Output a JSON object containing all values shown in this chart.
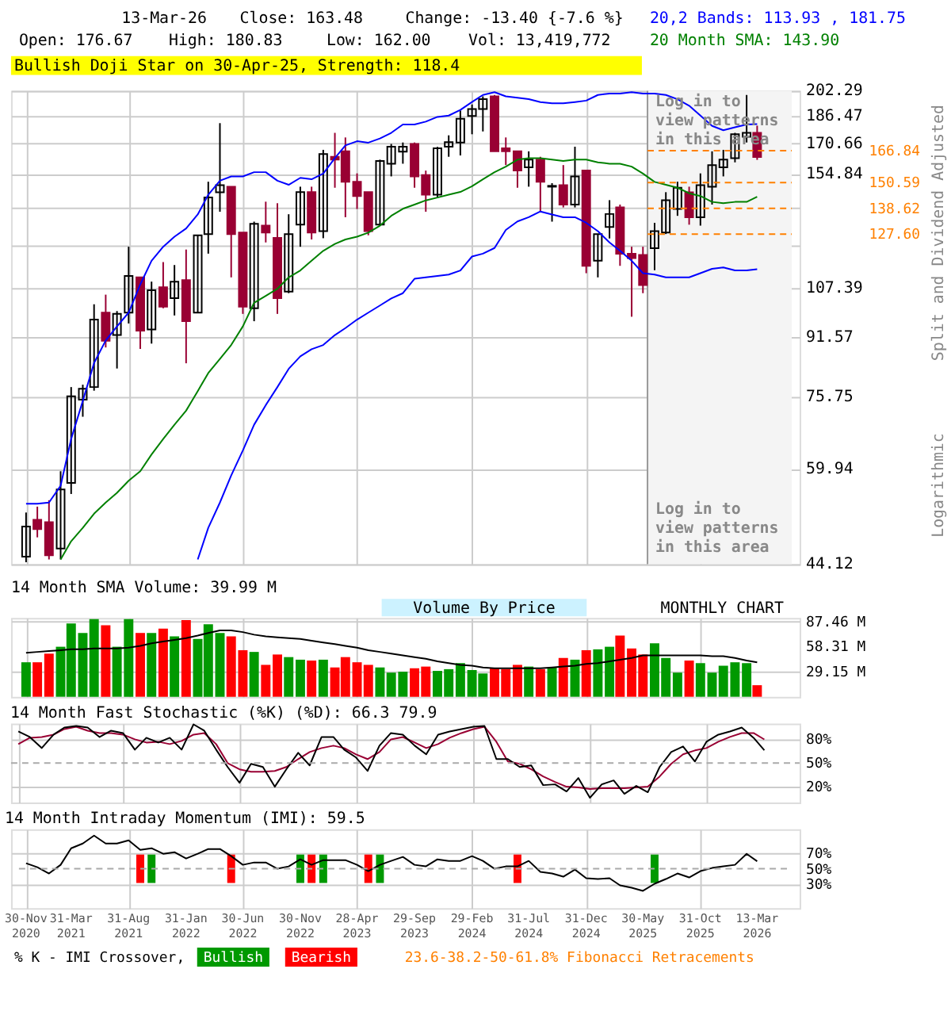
{
  "chart_data": [
    {
      "type": "candlestick",
      "categories": [
        null,
        null,
        null,
        null,
        null,
        null,
        null,
        null,
        null,
        null,
        null,
        null,
        null,
        null,
        null,
        null,
        null,
        null,
        null,
        null,
        null,
        null,
        null,
        null,
        null,
        null,
        null,
        null,
        null,
        null,
        null,
        null,
        null,
        null,
        null,
        null,
        null,
        null,
        null,
        null,
        null,
        null,
        null,
        null,
        null,
        null,
        null,
        null,
        null,
        null,
        null,
        null,
        null,
        null,
        null,
        null,
        null,
        null,
        null,
        null,
        null,
        null,
        null,
        null,
        null
      ],
      "ohlc": [
        [
          45.2,
          52.1,
          44.4,
          49.8
        ],
        [
          50.9,
          53.1,
          48.1,
          49.4
        ],
        [
          50.5,
          54.2,
          44.8,
          45.4
        ],
        [
          46.4,
          59.5,
          44.8,
          56.1
        ],
        [
          57.3,
          78.0,
          55.3,
          75.7
        ],
        [
          74.9,
          78.6,
          70.9,
          77.6
        ],
        [
          78.0,
          101.8,
          77.1,
          96.9
        ],
        [
          99.1,
          105.0,
          88.6,
          90.5
        ],
        [
          92.2,
          99.6,
          82.8,
          98.7
        ],
        [
          99.1,
          122.5,
          95.7,
          111.5
        ],
        [
          111.0,
          111.0,
          88.2,
          93.5
        ],
        [
          93.9,
          109.5,
          89.7,
          106.5
        ],
        [
          107.5,
          116.6,
          100.5,
          101.0
        ],
        [
          103.8,
          115.5,
          98.2,
          109.5
        ],
        [
          110.0,
          121.4,
          84.2,
          96.4
        ],
        [
          99.1,
          127.1,
          99.1,
          127.1
        ],
        [
          127.6,
          151.0,
          119.8,
          143.5
        ],
        [
          145.9,
          182.3,
          137.1,
          149.3
        ],
        [
          148.6,
          148.6,
          111.0,
          127.6
        ],
        [
          128.2,
          128.2,
          98.7,
          101.0
        ],
        [
          100.5,
          132.8,
          96.4,
          131.9
        ],
        [
          131.1,
          141.6,
          124.2,
          128.2
        ],
        [
          126.0,
          140.9,
          98.7,
          103.8
        ],
        [
          106.0,
          136.0,
          105.5,
          127.6
        ],
        [
          131.5,
          148.6,
          122.5,
          146.0
        ],
        [
          146.0,
          148.6,
          125.4,
          128.2
        ],
        [
          128.8,
          167.3,
          125.9,
          165.1
        ],
        [
          163.6,
          176.7,
          148.1,
          162.1
        ],
        [
          166.5,
          174.1,
          134.7,
          151.0
        ],
        [
          151.0,
          155.1,
          138.3,
          144.2
        ],
        [
          146.0,
          146.0,
          127.1,
          128.8
        ],
        [
          131.5,
          162.1,
          131.1,
          161.4
        ],
        [
          160.0,
          170.5,
          153.6,
          169.0
        ],
        [
          166.3,
          171.3,
          160.0,
          169.0
        ],
        [
          170.5,
          171.3,
          148.1,
          153.6
        ],
        [
          154.3,
          156.5,
          137.1,
          144.8
        ],
        [
          144.8,
          168.9,
          143.5,
          168.1
        ],
        [
          169.0,
          175.3,
          163.6,
          171.5
        ],
        [
          171.3,
          189.9,
          164.3,
          184.9
        ],
        [
          186.5,
          193.6,
          175.9,
          190.8
        ],
        [
          190.8,
          198.7,
          177.5,
          196.9
        ],
        [
          198.7,
          199.6,
          166.5,
          166.5
        ],
        [
          168.1,
          174.1,
          159.3,
          166.5
        ],
        [
          166.5,
          166.5,
          148.1,
          156.5
        ],
        [
          158.2,
          166.5,
          148.6,
          162.1
        ],
        [
          162.1,
          163.6,
          137.1,
          151.0
        ],
        [
          148.6,
          150.3,
          132.8,
          149.0
        ],
        [
          149.3,
          159.3,
          139.0,
          140.3
        ],
        [
          140.3,
          169.0,
          139.0,
          153.6
        ],
        [
          156.5,
          156.5,
          112.5,
          115.2
        ],
        [
          117.1,
          127.6,
          111.0,
          127.6
        ],
        [
          130.5,
          142.3,
          125.8,
          136.1
        ],
        [
          139.0,
          140.3,
          115.2,
          119.8
        ],
        [
          119.8,
          122.5,
          97.8,
          118.1
        ],
        [
          119.3,
          122.5,
          105.5,
          108.3
        ],
        [
          121.9,
          132.3,
          113.6,
          128.8
        ],
        [
          128.2,
          146.0,
          127.6,
          142.3
        ],
        [
          138.3,
          151.0,
          135.3,
          148.1
        ],
        [
          145.9,
          148.6,
          131.5,
          134.7
        ],
        [
          134.7,
          155.1,
          131.1,
          149.3
        ],
        [
          148.6,
          166.5,
          140.3,
          159.3
        ],
        [
          158.2,
          167.3,
          153.6,
          162.1
        ],
        [
          162.9,
          176.7,
          160.7,
          175.9
        ],
        [
          174.5,
          199.6,
          171.3,
          176.67
        ],
        [
          176.67,
          180.83,
          162.0,
          163.48
        ]
      ],
      "colors": [
        "#000000",
        "#990033",
        "#990033",
        "#000000",
        "#000000",
        "#000000",
        "#000000",
        "#990033",
        "#000000",
        "#000000",
        "#990033",
        "#000000",
        "#990033",
        "#000000",
        "#990033",
        "#000000",
        "#000000",
        "#000000",
        "#990033",
        "#990033",
        "#000000",
        "#990033",
        "#990033",
        "#000000",
        "#000000",
        "#990033",
        "#000000",
        "#990033",
        "#990033",
        "#990033",
        "#990033",
        "#000000",
        "#000000",
        "#000000",
        "#990033",
        "#990033",
        "#000000",
        "#000000",
        "#000000",
        "#000000",
        "#000000",
        "#990033",
        "#990033",
        "#990033",
        "#000000",
        "#990033",
        "#000000",
        "#990033",
        "#000000",
        "#990033",
        "#000000",
        "#000000",
        "#990033",
        "#990033",
        "#990033",
        "#000000",
        "#000000",
        "#000000",
        "#990033",
        "#000000",
        "#000000",
        "#000000",
        "#000000",
        "#000000",
        "#990033"
      ],
      "series": [
        {
          "type": "line",
          "name": "20,2 Bands: 113.93 , 181.75",
          "color": "#0000ff",
          "values": [
            53.6,
            53.6,
            53.8,
            56.8,
            66.0,
            74.6,
            84.3,
            90.6,
            94.8,
            99.1,
            108.5,
            117.1,
            122.5,
            126.5,
            129.9,
            135.9,
            144.8,
            151.5,
            153.6,
            153.6,
            155.7,
            155.7,
            151.5,
            149.5,
            152.9,
            152.2,
            155.0,
            162.9,
            169.7,
            172.0,
            171.2,
            173.5,
            176.7,
            181.5,
            181.5,
            183.2,
            186.0,
            186.8,
            190.2,
            195.1,
            199.6,
            201.4,
            198.7,
            197.8,
            196.9,
            195.1,
            194.3,
            194.3,
            195.1,
            196.0,
            199.6,
            200.5,
            200.5,
            201.4,
            200.5,
            200.5,
            199.6,
            196.9,
            192.8,
            186.8,
            180.7,
            178.2,
            179.9,
            181.5,
            181.75
          ]
        },
        {
          "type": "line",
          "name": "20 Month SMA: 143.90",
          "color": "#008000",
          "values": [
            null,
            null,
            null,
            44.8,
            47.5,
            49.6,
            51.9,
            53.8,
            55.5,
            57.7,
            59.5,
            62.8,
            66.0,
            69.1,
            72.3,
            77.0,
            81.6,
            85.4,
            89.3,
            94.8,
            102.3,
            104.6,
            107.0,
            111.0,
            113.5,
            117.1,
            120.9,
            123.6,
            125.4,
            126.5,
            128.2,
            131.1,
            135.3,
            138.4,
            140.3,
            142.2,
            143.5,
            144.8,
            146.1,
            148.8,
            152.2,
            155.7,
            158.5,
            162.1,
            162.9,
            162.9,
            162.1,
            161.4,
            162.1,
            162.1,
            160.7,
            160.0,
            160.0,
            158.5,
            155.0,
            150.9,
            149.5,
            148.1,
            145.5,
            144.2,
            141.5,
            140.9,
            141.5,
            141.5,
            143.9
          ]
        },
        {
          "type": "line",
          "color": "#0000ff",
          "values": [
            null,
            null,
            null,
            null,
            null,
            null,
            null,
            null,
            null,
            null,
            null,
            null,
            null,
            null,
            null,
            44.8,
            49.6,
            53.8,
            58.7,
            63.6,
            69.1,
            73.6,
            78.0,
            82.7,
            86.1,
            88.1,
            89.3,
            92.2,
            94.3,
            96.9,
            99.1,
            101.4,
            103.7,
            105.5,
            110.5,
            111.0,
            111.5,
            112.0,
            113.5,
            118.7,
            119.8,
            122.0,
            129.3,
            132.9,
            134.7,
            137.2,
            135.9,
            134.7,
            134.7,
            132.3,
            128.8,
            124.2,
            120.9,
            117.1,
            112.5,
            112.0,
            111.0,
            111.0,
            111.0,
            112.5,
            114.1,
            114.6,
            113.5,
            113.5,
            113.93
          ]
        }
      ],
      "ylim": [
        44.12,
        202.29
      ],
      "yticks": [
        44.12,
        59.94,
        75.75,
        91.57,
        107.39,
        {
          "value": 123.21,
          "label": null
        },
        {
          "value": 139.02,
          "label": null
        },
        154.84,
        170.66,
        186.47,
        202.29
      ],
      "log": true,
      "grid": true,
      "tick_labels": "y",
      "ylabel": "Split and Dividend Adjusted",
      "ref_lines": [
        {
          "axis": "y",
          "value": 166.84,
          "label": "166.84",
          "color": "#ff8000",
          "line_style": "dashed"
        },
        {
          "axis": "y",
          "value": 150.59,
          "label": "150.59",
          "color": "#ff8000",
          "line_style": "dashed"
        },
        {
          "axis": "y",
          "value": 138.62,
          "label": "138.62",
          "color": "#ff8000",
          "line_style": "dashed"
        },
        {
          "axis": "y",
          "value": 127.6,
          "label": "127.60",
          "color": "#ff8000",
          "line_style": "dashed"
        }
      ],
      "annotations": [
        "13-Mar-26",
        "Close: 163.48",
        "Change: -13.40 {-7.6 %}",
        "Open: 176.67",
        "High: 180.83",
        "Low: 162.00",
        "Vol: 13,419,772",
        "Bullish Doji Star on 30-Apr-25, Strength: 118.4",
        "Logarithmic",
        "Log in to view patterns in this area",
        "Log in to view patterns in this area"
      ]
    },
    {
      "type": "bar",
      "title": "14 Month SMA Volume: 39.99 M",
      "categories": [
        null,
        null,
        null,
        null,
        null,
        null,
        null,
        null,
        null,
        null,
        null,
        null,
        null,
        null,
        null,
        null,
        null,
        null,
        null,
        null,
        null,
        null,
        null,
        null,
        null,
        null,
        null,
        null,
        null,
        null,
        null,
        null,
        null,
        null,
        null,
        null,
        null,
        null,
        null,
        null,
        null,
        null,
        null,
        null,
        null,
        null,
        null,
        null,
        null,
        null,
        null,
        null,
        null,
        null,
        null,
        null,
        null,
        null,
        null,
        null,
        null,
        null,
        null,
        null,
        null
      ],
      "values": [
        40,
        40,
        50,
        58,
        85,
        74,
        90,
        83,
        58,
        90,
        74,
        74,
        79,
        70,
        89,
        67,
        84,
        74,
        70,
        54,
        52,
        37,
        49,
        46,
        43,
        42,
        43,
        34,
        46,
        40,
        37,
        34,
        28,
        29,
        33,
        35,
        30,
        32,
        39,
        31,
        27,
        33,
        32,
        37,
        35,
        32,
        34,
        45,
        43,
        54,
        55,
        58,
        71,
        56,
        49,
        62,
        45,
        28,
        42,
        39,
        28,
        36,
        40,
        39,
        13.4
      ],
      "colors": [
        "#009900",
        "#ff0000",
        "#ff0000",
        "#009900",
        "#009900",
        "#009900",
        "#009900",
        "#ff0000",
        "#009900",
        "#009900",
        "#ff0000",
        "#009900",
        "#ff0000",
        "#009900",
        "#ff0000",
        "#009900",
        "#009900",
        "#009900",
        "#ff0000",
        "#ff0000",
        "#009900",
        "#ff0000",
        "#ff0000",
        "#009900",
        "#009900",
        "#ff0000",
        "#009900",
        "#ff0000",
        "#ff0000",
        "#ff0000",
        "#ff0000",
        "#009900",
        "#009900",
        "#009900",
        "#ff0000",
        "#ff0000",
        "#009900",
        "#009900",
        "#009900",
        "#009900",
        "#009900",
        "#ff0000",
        "#ff0000",
        "#ff0000",
        "#009900",
        "#ff0000",
        "#009900",
        "#ff0000",
        "#009900",
        "#ff0000",
        "#009900",
        "#009900",
        "#ff0000",
        "#ff0000",
        "#ff0000",
        "#009900",
        "#009900",
        "#009900",
        "#ff0000",
        "#009900",
        "#009900",
        "#009900",
        "#009900",
        "#009900",
        "#ff0000"
      ],
      "series": [
        {
          "type": "line",
          "color": "#000000",
          "values": [
            51,
            52,
            53,
            54,
            55,
            55,
            56,
            56,
            56,
            57,
            59,
            62,
            64,
            66,
            68,
            71,
            74,
            77,
            77,
            75,
            72,
            70,
            69,
            68,
            67,
            65,
            63,
            61,
            59,
            57,
            54,
            52,
            50,
            48,
            46,
            44,
            41,
            39,
            37,
            36,
            34,
            33,
            33,
            33,
            33,
            33,
            34,
            35,
            36,
            38,
            39,
            41,
            43,
            45,
            48,
            48,
            48,
            48,
            48,
            48,
            47,
            47,
            45,
            42,
            39.99
          ]
        }
      ],
      "ylim": [
        0,
        91.5
      ],
      "yticks": [
        {
          "value": 29.15,
          "label": "29.15 M"
        },
        {
          "value": 58.31,
          "label": "58.31 M"
        },
        {
          "value": 87.46,
          "label": "87.46 M"
        }
      ],
      "grid": true,
      "tick_labels": "y",
      "annotations": [
        "Volume By Price",
        "MONTHLY CHART"
      ]
    },
    {
      "type": "line",
      "title": "14 Month Fast Stochastic (%K) (%D): 66.3 79.9",
      "categories": [
        null,
        null,
        null,
        null,
        null,
        null,
        null,
        null,
        null,
        null,
        null,
        null,
        null,
        null,
        null,
        null,
        null,
        null,
        null,
        null,
        null,
        null,
        null,
        null,
        null,
        null,
        null,
        null,
        null,
        null,
        null,
        null,
        null,
        null,
        null,
        null,
        null,
        null,
        null,
        null,
        null,
        null,
        null,
        null,
        null,
        null,
        null,
        null,
        null,
        null,
        null,
        null,
        null,
        null,
        null,
        null,
        null,
        null,
        null,
        null,
        null,
        null,
        null,
        null,
        null
      ],
      "series": [
        {
          "type": "line",
          "color": "#990033",
          "values": [
            74,
            82,
            83,
            86,
            93,
            96,
            91,
            88,
            88,
            86,
            80,
            76,
            77,
            74,
            78,
            86,
            88,
            74,
            50,
            42,
            39,
            39,
            40,
            45,
            55,
            64,
            69,
            72,
            69,
            61,
            55,
            64,
            80,
            83,
            76,
            69,
            74,
            82,
            88,
            93,
            96,
            77,
            52,
            49,
            42,
            33,
            26,
            20,
            19,
            17,
            18,
            18,
            18,
            19,
            20,
            33,
            49,
            61,
            66,
            69,
            77,
            83,
            88,
            88,
            79.9
          ]
        },
        {
          "type": "line",
          "color": "#000000",
          "values": [
            90,
            83,
            69,
            86,
            95,
            97,
            95,
            83,
            91,
            88,
            67,
            82,
            76,
            82,
            67,
            99,
            91,
            67,
            45,
            25,
            49,
            45,
            20,
            42,
            63,
            47,
            83,
            83,
            67,
            57,
            40,
            72,
            88,
            86,
            72,
            61,
            86,
            90,
            93,
            96,
            97,
            55,
            55,
            45,
            47,
            22,
            23,
            14,
            31,
            6,
            23,
            28,
            11,
            21,
            13,
            45,
            64,
            71,
            52,
            77,
            86,
            90,
            95,
            82,
            66.3
          ]
        }
      ],
      "ylim": [
        0,
        100
      ],
      "yticks": [
        {
          "value": 20,
          "label": "20%"
        },
        {
          "value": 50,
          "label": "50%"
        },
        {
          "value": 80,
          "label": "80%"
        }
      ],
      "ref_lines": [
        {
          "axis": "y",
          "value": 50,
          "color": "#aaaaaa",
          "line_style": "dashed"
        }
      ],
      "grid": true,
      "tick_labels": "y"
    },
    {
      "type": "line",
      "title": "14 Month Intraday Momentum (IMI): 59.5",
      "x": [
        "2020-11",
        "2020-12",
        "2021-01",
        "2021-02",
        "2021-03",
        "2021-04",
        "2021-05",
        "2021-06",
        "2021-07",
        "2021-08",
        "2021-09",
        "2021-10",
        "2021-11",
        "2021-12",
        "2022-01",
        "2022-02",
        "2022-03",
        "2022-04",
        "2022-05",
        "2022-06",
        "2022-07",
        "2022-08",
        "2022-09",
        "2022-10",
        "2022-11",
        "2022-12",
        "2023-01",
        "2023-02",
        "2023-03",
        "2023-04",
        "2023-05",
        "2023-06",
        "2023-07",
        "2023-08",
        "2023-09",
        "2023-10",
        "2023-11",
        "2023-12",
        "2024-01",
        "2024-02",
        "2024-03",
        "2024-04",
        "2024-05",
        "2024-06",
        "2024-07",
        "2024-08",
        "2024-09",
        "2024-10",
        "2024-11",
        "2024-12",
        "2025-01",
        "2025-02",
        "2025-03",
        "2025-04",
        "2025-05",
        "2025-06",
        "2025-07",
        "2025-08",
        "2025-09",
        "2025-10",
        "2025-11",
        "2025-12",
        "2026-01",
        "2026-02",
        "2026-03"
      ],
      "series": [
        {
          "type": "bar",
          "name": "Bullish",
          "color": "#009900",
          "x": [
            "2021-10",
            "2022-11",
            "2023-01",
            "2023-06",
            "2025-06"
          ],
          "base": [
            32,
            32,
            32,
            32,
            32
          ],
          "values": [
            36,
            36,
            36,
            36,
            36
          ]
        },
        {
          "type": "bar",
          "name": "Bearish",
          "color": "#ff0000",
          "x": [
            "2021-09",
            "2022-05",
            "2022-12",
            "2023-05",
            "2024-06"
          ],
          "base": [
            32,
            32,
            32,
            32,
            32
          ],
          "values": [
            36,
            36,
            36,
            36,
            36
          ]
        },
        {
          "type": "line",
          "color": "#000000",
          "values": [
            57,
            52,
            44,
            55,
            76,
            82,
            92,
            82,
            82,
            86,
            74,
            76,
            69,
            71,
            63,
            69,
            75,
            75,
            66,
            55,
            58,
            58,
            50,
            53,
            62,
            55,
            61,
            61,
            61,
            55,
            47,
            55,
            60,
            65,
            55,
            53,
            62,
            60,
            60,
            66,
            60,
            50,
            53,
            53,
            60,
            46,
            44,
            40,
            49,
            38,
            37,
            38,
            29,
            26,
            22,
            31,
            37,
            44,
            39,
            47,
            51,
            53,
            55,
            69,
            59.5
          ]
        }
      ],
      "xlim": [
        "2020-10-13",
        "2026-06-01"
      ],
      "xticks": [
        {
          "value": "2020-11",
          "label": "30-Nov 2020"
        },
        {
          "value": "2021-03",
          "label": "31-Mar 2021"
        },
        {
          "value": "2021-08",
          "label": "31-Aug 2021"
        },
        {
          "value": "2022-01",
          "label": "31-Jan 2022"
        },
        {
          "value": "2022-06",
          "label": "30-Jun 2022"
        },
        {
          "value": "2022-11",
          "label": "30-Nov 2022"
        },
        {
          "value": "2023-04",
          "label": "28-Apr 2023"
        },
        {
          "value": "2023-09",
          "label": "29-Sep 2023"
        },
        {
          "value": "2024-02",
          "label": "29-Feb 2024"
        },
        {
          "value": "2024-07",
          "label": "31-Jul 2024"
        },
        {
          "value": "2024-12",
          "label": "31-Dec 2024"
        },
        {
          "value": "2025-05",
          "label": "30-May 2025"
        },
        {
          "value": "2025-10",
          "label": "31-Oct 2025"
        },
        {
          "value": "2026-03",
          "label": "13-Mar 2026"
        }
      ],
      "ylim": [
        0,
        100
      ],
      "yticks": [
        {
          "value": 30,
          "label": "30%"
        },
        {
          "value": 50,
          "label": "50%"
        },
        {
          "value": 70,
          "label": "70%"
        }
      ],
      "ref_lines": [
        {
          "axis": "y",
          "value": 50,
          "color": "#aaaaaa",
          "line_style": "dashed"
        }
      ],
      "grid": true,
      "legend": "bottom",
      "legend_title": "% K - IMI Crossover,",
      "annotations": [
        "23.6-38.2-50-61.8% Fibonacci Retracements"
      ]
    }
  ]
}
